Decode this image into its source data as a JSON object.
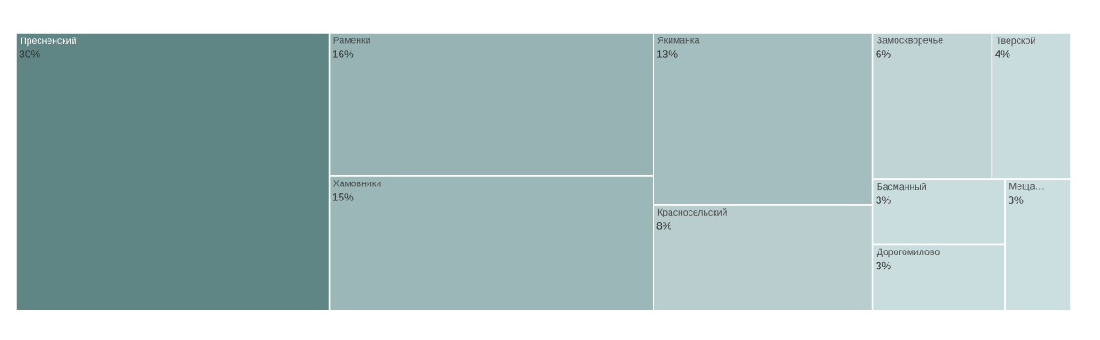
{
  "chart_data": {
    "type": "other",
    "categories": [
      "Пресненский",
      "Раменки",
      "Хамовники",
      "Якиманка",
      "Красносельский",
      "Замоскворечье",
      "Тверской",
      "Басманный",
      "Дорогомилово",
      "Меща…"
    ],
    "values": [
      30,
      16,
      15,
      13,
      8,
      6,
      4,
      3,
      3,
      3
    ],
    "value_labels": [
      "30%",
      "16%",
      "15%",
      "13%",
      "8%",
      "6%",
      "4%",
      "3%",
      "3%",
      "3%"
    ],
    "colors": [
      "#5f8684",
      "#97b3b4",
      "#9cb7b8",
      "#a4bdbf",
      "#b9cdce",
      "#c0d3d5",
      "#c8dbdd",
      "#c9dcde",
      "#c9dcde",
      "#cbdee0"
    ]
  }
}
